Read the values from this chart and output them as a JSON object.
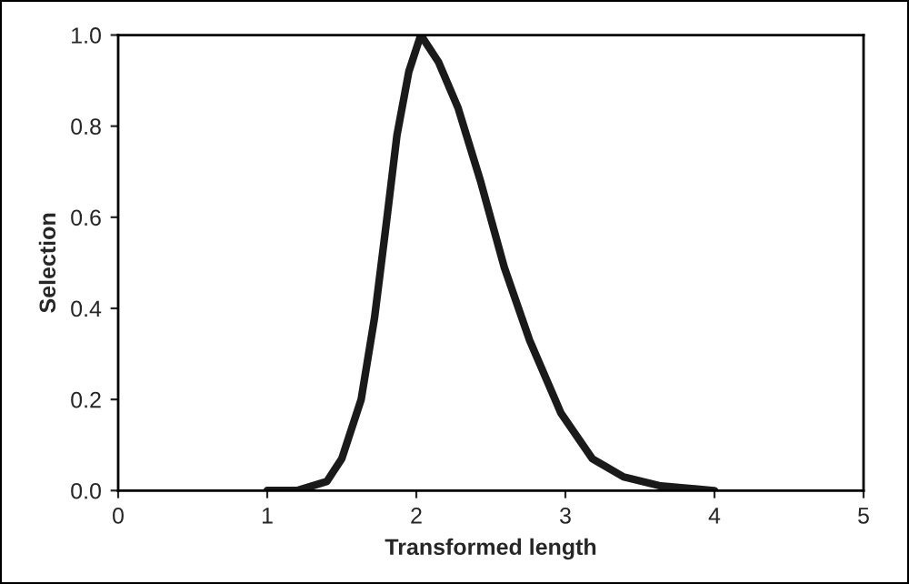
{
  "chart_data": {
    "type": "line",
    "xlabel": "Transformed length",
    "ylabel": "Selection",
    "series": [
      {
        "color": "#1a1a1a",
        "x": [
          1,
          1.2,
          1.4,
          1.5,
          1.63,
          1.72,
          1.8,
          1.87,
          1.95,
          2.03,
          2.15,
          2.28,
          2.43,
          2.59,
          2.76,
          2.97,
          3.18,
          3.39,
          3.64,
          4.0
        ],
        "values": [
          0,
          0,
          0.02,
          0.07,
          0.2,
          0.38,
          0.59,
          0.78,
          0.92,
          1.0,
          0.94,
          0.84,
          0.68,
          0.49,
          0.33,
          0.17,
          0.07,
          0.03,
          0.01,
          0
        ]
      }
    ],
    "xlim": [
      0,
      5
    ],
    "xticks": [
      0,
      1,
      2,
      3,
      4,
      5
    ],
    "ylim": [
      0,
      1.0
    ],
    "yticks": [
      {
        "value": 0,
        "label": "0.0"
      },
      {
        "value": 0.2,
        "label": "0.2"
      },
      {
        "value": 0.4,
        "label": "0.4"
      },
      {
        "value": 0.6,
        "label": "0.6"
      },
      {
        "value": 0.8,
        "label": "0.8"
      },
      {
        "value": 1.0,
        "label": "1.0"
      }
    ],
    "grid": false,
    "legend": false,
    "marker": "none",
    "line_style": "solid"
  }
}
